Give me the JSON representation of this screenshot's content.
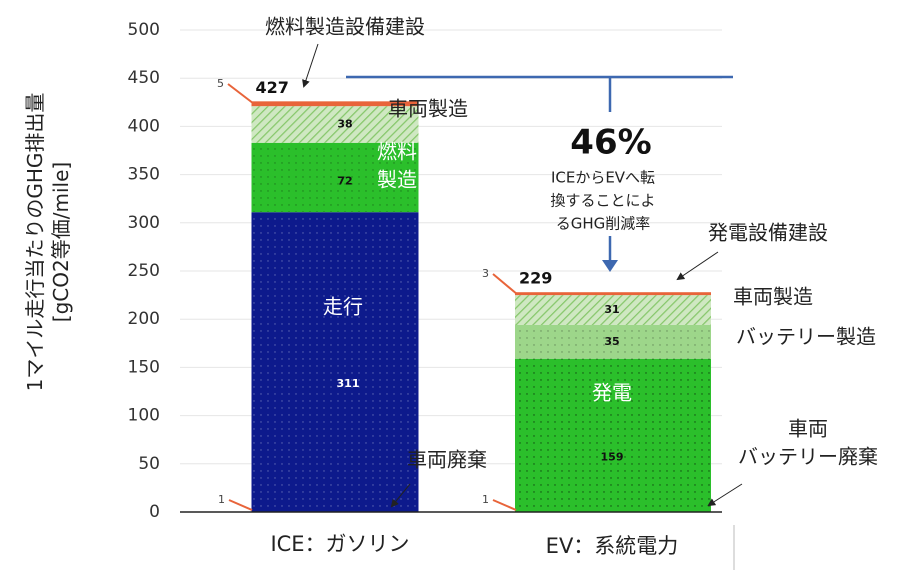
{
  "chart_data": {
    "type": "bar",
    "stacked": true,
    "ylabel_line1": "1マイル走行当たりのGHG排出量",
    "ylabel_line2": "[gCO2等価/mile]",
    "ylim": [
      0,
      500
    ],
    "yticks": [
      0,
      50,
      100,
      150,
      200,
      250,
      300,
      350,
      400,
      450,
      500
    ],
    "categories": [
      "ICE：ガソリン",
      "EV：系統電力"
    ],
    "totals": [
      427,
      229
    ],
    "segments": [
      [
        {
          "label": "走行",
          "value": 311,
          "color": "#0d1a8c"
        },
        {
          "label": "燃料\n製造",
          "value": 72,
          "color": "#2bbf2b"
        },
        {
          "label": "車両製造",
          "value": 38,
          "color": "#a6d98f"
        },
        {
          "label": "燃料製造設備建設",
          "value": 5,
          "color": "#e8643a"
        },
        {
          "label": "車両廃棄",
          "value": 1,
          "color": "#e8643a"
        }
      ],
      [
        {
          "label": "発電",
          "value": 159,
          "color": "#2bbf2b"
        },
        {
          "label": "バッテリー製造",
          "value": 35,
          "color": "#9dd68a"
        },
        {
          "label": "車両製造",
          "value": 31,
          "color": "#a6d98f"
        },
        {
          "label": "発電設備建設",
          "value": 3,
          "color": "#e8643a"
        },
        {
          "label": "車両\nバッテリー廃棄",
          "value": 1,
          "color": "#e8643a"
        }
      ]
    ],
    "annotations": {
      "reduction_value": "46%",
      "reduction_text": "ICEからEVへ転\n換することによ\nるGHG削減率"
    }
  }
}
